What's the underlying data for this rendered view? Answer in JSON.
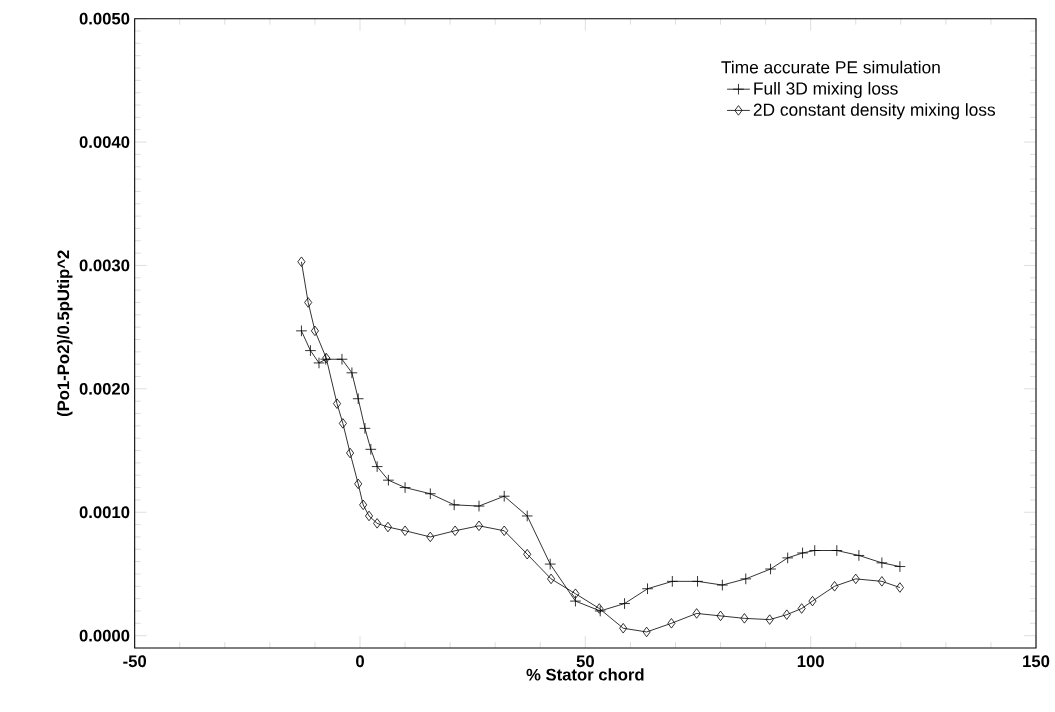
{
  "chart_data": {
    "type": "line",
    "xlabel": "% Stator chord",
    "ylabel": "(Po1-Po2)/0.5pUtip^2",
    "legend_title": "Time accurate PE simulation",
    "legend": "top right",
    "grid": false,
    "xlim": [
      -50,
      150
    ],
    "xticks": [
      -50,
      0,
      50,
      100,
      150
    ],
    "ylim": [
      -0.0001,
      0.005
    ],
    "yticks": [
      {
        "value": 0,
        "label": "0.0000"
      },
      {
        "value": 0.001,
        "label": "0.0010"
      },
      {
        "value": 0.002,
        "label": "0.0020"
      },
      {
        "value": 0.003,
        "label": "0.0030"
      },
      {
        "value": 0.004,
        "label": "0.0040"
      },
      {
        "value": 0.005,
        "label": "0.0050"
      }
    ],
    "series": [
      {
        "name": "Full 3D mixing loss",
        "color": "#000000",
        "marker": "cross",
        "line_style": "solid",
        "x": [
          -13,
          -11,
          -9.1,
          -7.6,
          -4,
          -1.8,
          -0.4,
          1.1,
          2.4,
          3.8,
          6.3,
          10,
          15.6,
          20.9,
          26.4,
          32,
          37.1,
          42.2,
          47.8,
          53.3,
          58.7,
          63.8,
          69.3,
          74.9,
          80.4,
          85.6,
          91.1,
          94.9,
          98.2,
          100.9,
          105.8,
          110.7,
          115.8,
          119.8
        ],
        "values": [
          0.00247,
          0.00231,
          0.00221,
          0.00224,
          0.00224,
          0.00213,
          0.00192,
          0.00168,
          0.00151,
          0.00137,
          0.00126,
          0.0012,
          0.00115,
          0.00106,
          0.00105,
          0.00113,
          0.00097,
          0.00058,
          0.00028,
          0.0002,
          0.00026,
          0.00038,
          0.00044,
          0.00044,
          0.00041,
          0.00046,
          0.00054,
          0.00063,
          0.00067,
          0.00069,
          0.00069,
          0.00065,
          0.00059,
          0.00056
        ]
      },
      {
        "name": "2D constant density mixing loss",
        "color": "#000000",
        "marker": "diamond",
        "line_style": "solid",
        "x": [
          -13,
          -11.5,
          -10,
          -7.5,
          -5.1,
          -3.8,
          -2.2,
          -0.4,
          0.7,
          2,
          3.8,
          6.2,
          10,
          15.6,
          21.1,
          26.4,
          32,
          37.1,
          42.4,
          47.8,
          53.1,
          58.4,
          63.6,
          69.1,
          74.7,
          80,
          85.3,
          90.9,
          94.7,
          98,
          100.4,
          105.3,
          110,
          115.8,
          119.8
        ],
        "values": [
          0.00303,
          0.0027,
          0.00247,
          0.00225,
          0.00188,
          0.00172,
          0.00148,
          0.00123,
          0.00106,
          0.00097,
          0.00091,
          0.00088,
          0.00085,
          0.0008,
          0.00085,
          0.00089,
          0.00085,
          0.00066,
          0.00046,
          0.00034,
          0.00022,
          6e-05,
          3e-05,
          0.0001,
          0.00018,
          0.00016,
          0.00014,
          0.00013,
          0.00017,
          0.00022,
          0.00028,
          0.0004,
          0.00046,
          0.00044,
          0.00039
        ]
      }
    ]
  }
}
